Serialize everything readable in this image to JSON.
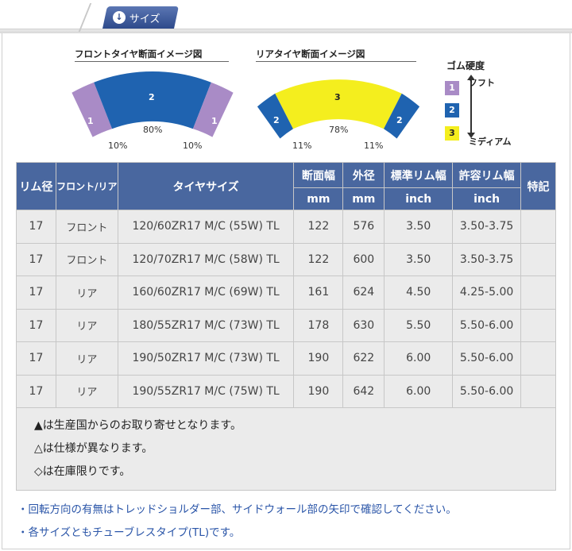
{
  "tab": {
    "icon": "download-arrow-icon",
    "label": "サイズ"
  },
  "front_diagram": {
    "title": "フロントタイヤ断面イメージ図",
    "segments": [
      {
        "label": "1",
        "pct": "10%",
        "color": "#a98bc6"
      },
      {
        "label": "2",
        "pct": "80%",
        "color": "#1f63b0"
      },
      {
        "label": "1",
        "pct": "10%",
        "color": "#a98bc6"
      }
    ]
  },
  "rear_diagram": {
    "title": "リアタイヤ断面イメージ図",
    "segments": [
      {
        "label": "2",
        "pct": "11%",
        "color": "#1f63b0"
      },
      {
        "label": "3",
        "pct": "78%",
        "color": "#f4ee1e"
      },
      {
        "label": "2",
        "pct": "11%",
        "color": "#1f63b0"
      }
    ]
  },
  "legend": {
    "title": "ゴム硬度",
    "items": [
      {
        "num": "1",
        "color": "#a98bc6",
        "label": "ソフト"
      },
      {
        "num": "2",
        "color": "#1f63b0",
        "label": ""
      },
      {
        "num": "3",
        "color": "#f4ee1e",
        "label": "ミディアム"
      }
    ]
  },
  "table": {
    "headers": {
      "rim": "リム径",
      "position": "フロント/リア",
      "size": "タイヤサイズ",
      "section_width": "断面幅",
      "outer_diameter": "外径",
      "std_rim_width": "標準リム幅",
      "allowed_rim_width": "許容リム幅",
      "notes": "特記",
      "unit_mm1": "mm",
      "unit_mm2": "mm",
      "unit_inch1": "inch",
      "unit_inch2": "inch"
    },
    "rows": [
      {
        "rim": "17",
        "position": "フロント",
        "size": "120/60ZR17 M/C (55W) TL",
        "section_width": "122",
        "outer_diameter": "576",
        "std_rim": "3.50",
        "allowed_rim": "3.50-3.75",
        "note": ""
      },
      {
        "rim": "17",
        "position": "フロント",
        "size": "120/70ZR17 M/C (58W) TL",
        "section_width": "122",
        "outer_diameter": "600",
        "std_rim": "3.50",
        "allowed_rim": "3.50-3.75",
        "note": ""
      },
      {
        "rim": "17",
        "position": "リア",
        "size": "160/60ZR17 M/C (69W) TL",
        "section_width": "161",
        "outer_diameter": "624",
        "std_rim": "4.50",
        "allowed_rim": "4.25-5.00",
        "note": ""
      },
      {
        "rim": "17",
        "position": "リア",
        "size": "180/55ZR17 M/C (73W) TL",
        "section_width": "178",
        "outer_diameter": "630",
        "std_rim": "5.50",
        "allowed_rim": "5.50-6.00",
        "note": ""
      },
      {
        "rim": "17",
        "position": "リア",
        "size": "190/50ZR17 M/C (73W) TL",
        "section_width": "190",
        "outer_diameter": "622",
        "std_rim": "6.00",
        "allowed_rim": "5.50-6.00",
        "note": ""
      },
      {
        "rim": "17",
        "position": "リア",
        "size": "190/55ZR17 M/C (75W) TL",
        "section_width": "190",
        "outer_diameter": "642",
        "std_rim": "6.00",
        "allowed_rim": "5.50-6.00",
        "note": ""
      }
    ],
    "footnotes": [
      "▲は生産国からのお取り寄せとなります。",
      "△は仕様が異なります。",
      "◇は在庫限りです。"
    ]
  },
  "notes": [
    "・回転方向の有無はトレッドショルダー部、サイドウォール部の矢印で確認してください。",
    "・各サイズともチューブレスタイプ(TL)です。"
  ]
}
